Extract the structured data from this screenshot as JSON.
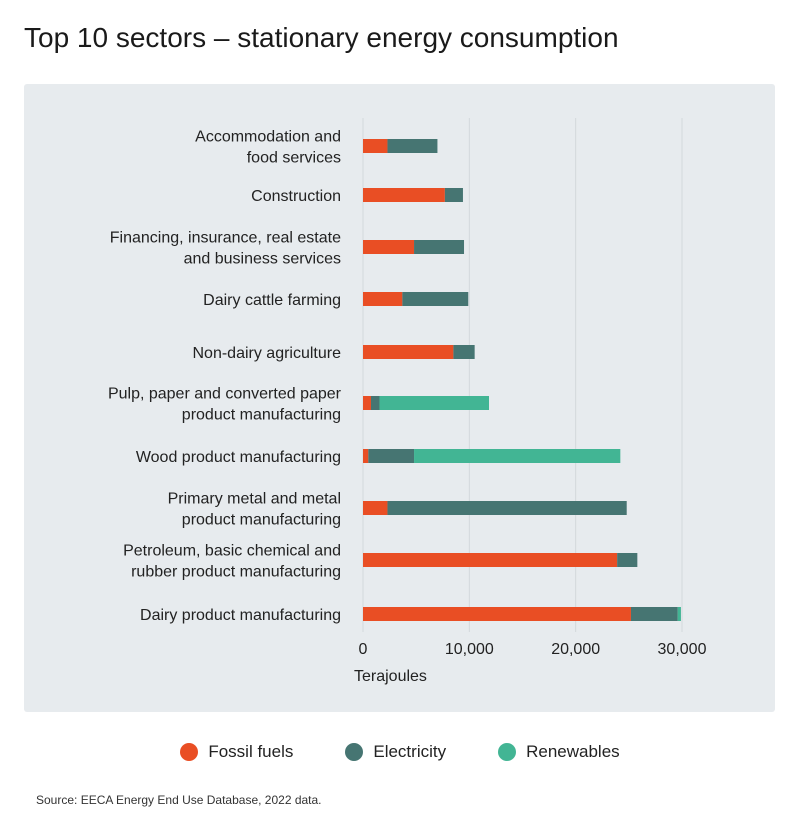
{
  "chart_data": {
    "type": "bar",
    "orientation": "horizontal",
    "stacked": true,
    "title": "Top 10 sectors – stationary energy consumption",
    "xlabel": "Terajoules",
    "xlim": [
      0,
      30000
    ],
    "xticks": [
      0,
      10000,
      20000,
      30000
    ],
    "xtick_labels": [
      "0",
      "10,000",
      "20,000",
      "30,000"
    ],
    "grid": true,
    "legend_position": "bottom",
    "categories": [
      [
        "Accommodation and",
        "food services"
      ],
      [
        "Construction"
      ],
      [
        "Financing, insurance, real estate",
        "and business services"
      ],
      [
        "Dairy cattle farming"
      ],
      [
        "Non-dairy agriculture"
      ],
      [
        "Pulp, paper and converted paper",
        "product manufacturing"
      ],
      [
        "Wood product manufacturing"
      ],
      [
        "Primary metal and metal",
        "product manufacturing"
      ],
      [
        "Petroleum, basic chemical and",
        "rubber product manufacturing"
      ],
      [
        "Dairy product manufacturing"
      ]
    ],
    "series": [
      {
        "name": "Fossil fuels",
        "color": "#e94e24",
        "values": [
          2300,
          7700,
          4800,
          3700,
          8500,
          750,
          500,
          2300,
          23900,
          25200
        ]
      },
      {
        "name": "Electricity",
        "color": "#467572",
        "values": [
          4700,
          1700,
          4700,
          6200,
          2000,
          800,
          4300,
          22500,
          1900,
          4400
        ]
      },
      {
        "name": "Renewables",
        "color": "#42b594",
        "values": [
          0,
          0,
          0,
          0,
          0,
          10300,
          19400,
          0,
          0,
          300
        ]
      }
    ]
  },
  "source": "Source: EECA Energy End Use Database, 2022 data."
}
